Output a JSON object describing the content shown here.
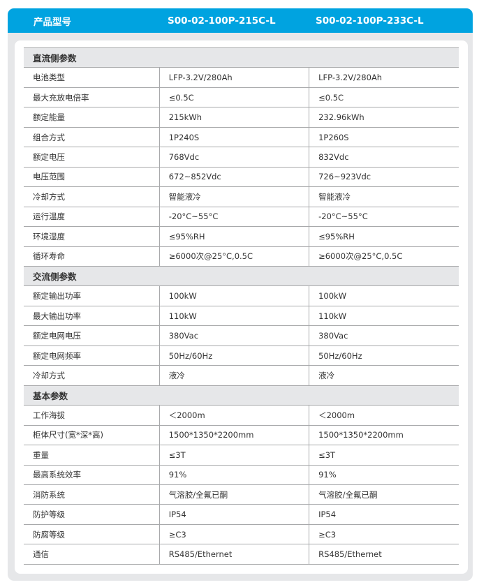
{
  "header": {
    "label": "产品型号",
    "models": [
      "S00-02-100P-215C-L",
      "S00-02-100P-233C-L"
    ]
  },
  "sections": [
    {
      "title": "直流侧参数",
      "rows": [
        [
          "电池类型",
          "LFP-3.2V/280Ah",
          "LFP-3.2V/280Ah"
        ],
        [
          "最大充放电倍率",
          "≤0.5C",
          "≤0.5C"
        ],
        [
          "额定能量",
          "215kWh",
          "232.96kWh"
        ],
        [
          "组合方式",
          "1P240S",
          "1P260S"
        ],
        [
          "额定电压",
          "768Vdc",
          "832Vdc"
        ],
        [
          "电压范围",
          "672~852Vdc",
          "726~923Vdc"
        ],
        [
          "冷却方式",
          "智能液冷",
          "智能液冷"
        ],
        [
          "运行温度",
          "-20°C~55°C",
          "-20°C~55°C"
        ],
        [
          "环境湿度",
          "≤95%RH",
          "≤95%RH"
        ],
        [
          "循环寿命",
          "≥6000次@25°C,0.5C",
          "≥6000次@25°C,0.5C"
        ]
      ]
    },
    {
      "title": "交流侧参数",
      "rows": [
        [
          "额定输出功率",
          "100kW",
          "100kW"
        ],
        [
          "最大输出功率",
          "110kW",
          "110kW"
        ],
        [
          "额定电网电压",
          "380Vac",
          "380Vac"
        ],
        [
          "额定电网频率",
          "50Hz/60Hz",
          "50Hz/60Hz"
        ],
        [
          "冷却方式",
          "液冷",
          "液冷"
        ]
      ]
    },
    {
      "title": "基本参数",
      "rows": [
        [
          "工作海拔",
          "＜2000m",
          "＜2000m"
        ],
        [
          "柜体尺寸(宽*深*高)",
          "1500*1350*2200mm",
          "1500*1350*2200mm"
        ],
        [
          "重量",
          "≤3T",
          "≤3T"
        ],
        [
          "最高系统效率",
          "91%",
          "91%"
        ],
        [
          "消防系统",
          "气溶胶/全氟已酮",
          "气溶胶/全氟已酮"
        ],
        [
          "防护等级",
          "IP54",
          "IP54"
        ],
        [
          "防腐等级",
          "≥C3",
          "≥C3"
        ],
        [
          "通信",
          "RS485/Ethernet",
          "RS485/Ethernet"
        ]
      ]
    }
  ],
  "colors": {
    "header": "#00a3e0",
    "section": "#e6e7e9"
  }
}
